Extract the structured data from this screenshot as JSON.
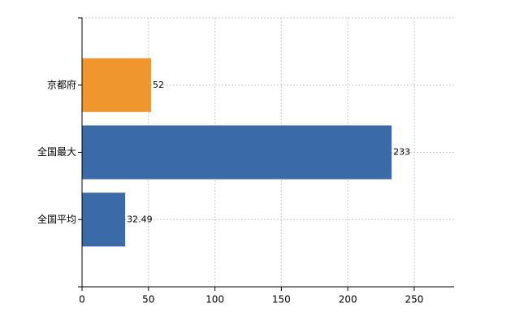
{
  "chart_data": {
    "type": "hbar",
    "categories": [
      "京都府",
      "全国最大",
      "全国平均"
    ],
    "values": [
      52,
      233,
      32.49
    ],
    "colors": [
      "#f0962e",
      "#3a6aa8",
      "#3a6aa8"
    ],
    "xlim": [
      0,
      280
    ],
    "xticks": [
      0,
      50,
      100,
      150,
      200,
      250
    ],
    "grid": true
  }
}
